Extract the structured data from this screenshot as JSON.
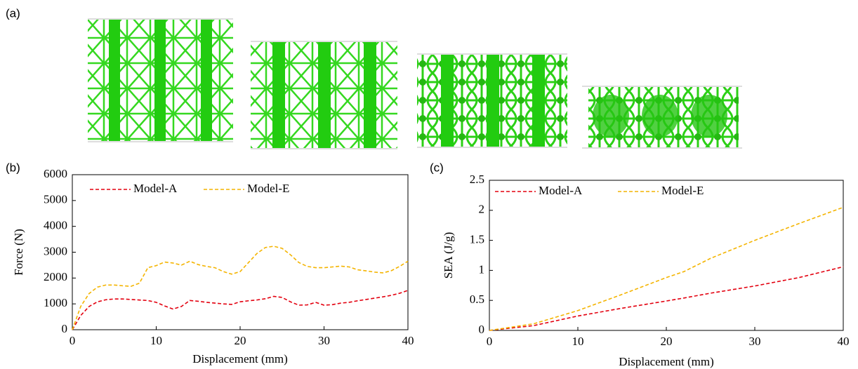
{
  "panel_a": {
    "label": "(a)"
  },
  "chart_data": [
    {
      "type": "line",
      "panel_label": "(b)",
      "x_label": "Displacement (mm)",
      "y_label": "Force (N)",
      "x": [
        0,
        1,
        2,
        3,
        4,
        5,
        6,
        7,
        8,
        9,
        10,
        11,
        12,
        13,
        14,
        15,
        16,
        17,
        18,
        19,
        20,
        21,
        22,
        23,
        24,
        25,
        26,
        27,
        28,
        29,
        30,
        31,
        32,
        33,
        34,
        35,
        36,
        37,
        38,
        39,
        40
      ],
      "series": [
        {
          "name": "Model-A",
          "color": "#e3000f",
          "dash": true,
          "values": [
            0,
            550,
            900,
            1080,
            1160,
            1190,
            1190,
            1170,
            1150,
            1130,
            1060,
            920,
            800,
            900,
            1130,
            1100,
            1060,
            1030,
            1000,
            980,
            1080,
            1120,
            1150,
            1200,
            1290,
            1250,
            1080,
            950,
            960,
            1060,
            950,
            970,
            1030,
            1060,
            1120,
            1170,
            1220,
            1270,
            1330,
            1410,
            1520
          ]
        },
        {
          "name": "Model-E",
          "color": "#f4b400",
          "dash": true,
          "values": [
            0,
            900,
            1400,
            1650,
            1730,
            1730,
            1700,
            1680,
            1800,
            2400,
            2480,
            2620,
            2580,
            2500,
            2650,
            2520,
            2450,
            2400,
            2250,
            2150,
            2250,
            2600,
            2950,
            3180,
            3230,
            3150,
            2900,
            2600,
            2450,
            2400,
            2400,
            2430,
            2460,
            2430,
            2320,
            2280,
            2230,
            2200,
            2280,
            2450,
            2650
          ]
        }
      ],
      "xlim": [
        0,
        40
      ],
      "xticks": [
        0,
        10,
        20,
        30,
        40
      ],
      "ylim": [
        0,
        6000
      ],
      "yticks": [
        0,
        1000,
        2000,
        3000,
        4000,
        5000,
        6000
      ],
      "legend": "upper left",
      "grid": false
    },
    {
      "type": "line",
      "panel_label": "(c)",
      "x_label": "Displacement (mm)",
      "y_label": "SEA (J/g)",
      "x": [
        0,
        5,
        10,
        15,
        20,
        22,
        25,
        30,
        35,
        40
      ],
      "series": [
        {
          "name": "Model-A",
          "color": "#e3000f",
          "dash": true,
          "values": [
            0,
            0.08,
            0.24,
            0.37,
            0.49,
            0.54,
            0.62,
            0.74,
            0.88,
            1.06
          ]
        },
        {
          "name": "Model-E",
          "color": "#f4b400",
          "dash": true,
          "values": [
            0,
            0.11,
            0.33,
            0.6,
            0.88,
            0.98,
            1.2,
            1.5,
            1.78,
            2.05
          ]
        }
      ],
      "xlim": [
        0,
        40
      ],
      "xticks": [
        0,
        10,
        20,
        30,
        40
      ],
      "ylim": [
        0,
        2.5
      ],
      "yticks": [
        0,
        0.5,
        1,
        1.5,
        2,
        2.5
      ],
      "legend": "upper left",
      "grid": false
    }
  ]
}
